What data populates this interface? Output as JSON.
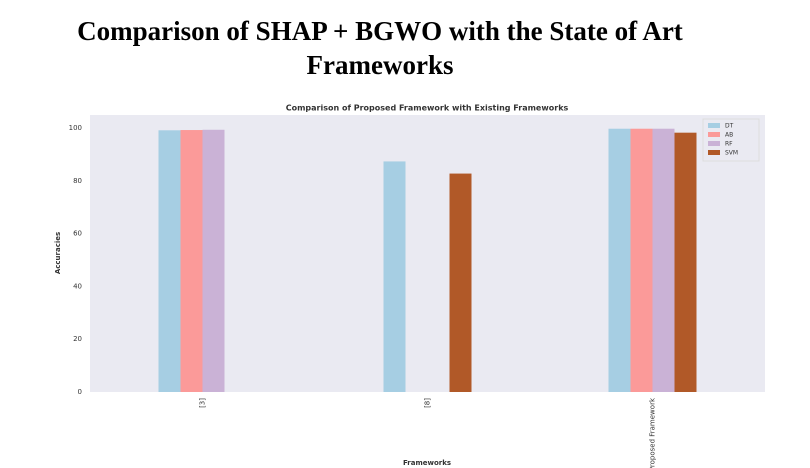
{
  "heading": "Comparison of SHAP + BGWO with the State of Art Frameworks",
  "chart_data": {
    "type": "bar",
    "title": "Comparison of Proposed Framework with Existing Frameworks",
    "x_label": "Frameworks",
    "y_label": "Accuracies",
    "categories": [
      "[3]",
      "[8]",
      "Proposed Framework"
    ],
    "series": [
      {
        "name": "DT",
        "color": "#a6cee3",
        "values": [
          99.2,
          87.4,
          99.8
        ]
      },
      {
        "name": "AB",
        "color": "#fb9a99",
        "values": [
          99.3,
          null,
          99.8
        ]
      },
      {
        "name": "RF",
        "color": "#cab2d6",
        "values": [
          99.4,
          null,
          99.8
        ]
      },
      {
        "name": "SVM",
        "color": "#b15928",
        "values": [
          null,
          82.8,
          98.3
        ]
      }
    ],
    "ylim": [
      0,
      105
    ],
    "yticks": [
      0,
      20,
      40,
      60,
      80,
      100
    ],
    "grid": false,
    "legend": "upper right"
  }
}
